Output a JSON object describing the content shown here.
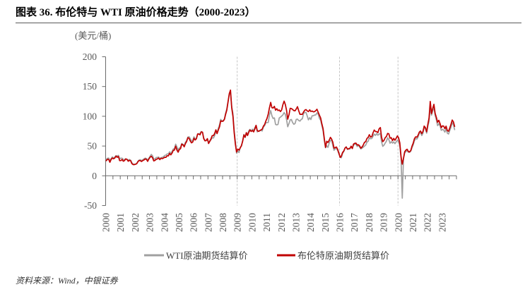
{
  "chart_data": {
    "type": "line",
    "title": "图表 36. 布伦特与 WTI 原油价格走势（2000-2023）",
    "ylabel": "(美元/桶)",
    "ylim": [
      -50,
      200
    ],
    "yticks": [
      -50,
      0,
      50,
      100,
      150,
      200
    ],
    "xlim": [
      2000,
      2024
    ],
    "xticks": [
      "2000",
      "2001",
      "2002",
      "2003",
      "2004",
      "2005",
      "2006",
      "2007",
      "2008",
      "2009",
      "2010",
      "2011",
      "2012",
      "2013",
      "2014",
      "2015",
      "2016",
      "2017",
      "2018",
      "2019",
      "2020",
      "2021",
      "2022",
      "2023"
    ],
    "reference_lines_x": [
      2009,
      2016,
      2020
    ],
    "grid": false,
    "legend": "bottom",
    "series": [
      {
        "name": "WTI原油期货结算价",
        "color": "#a0a0a0",
        "monthly_values": {
          "2000": [
            27.2,
            29.4,
            29.9,
            25.7,
            28.8,
            31.8,
            29.8,
            31.2,
            33.9,
            33.1,
            34.4,
            28.5
          ],
          "2001": [
            29.6,
            29.6,
            27.2,
            27.4,
            28.6,
            27.6,
            26.4,
            27.4,
            26.2,
            22.2,
            19.6,
            19.4
          ],
          "2002": [
            19.7,
            20.7,
            24.4,
            26.3,
            27.0,
            25.5,
            26.9,
            28.4,
            29.7,
            28.9,
            26.3,
            29.4
          ],
          "2003": [
            32.9,
            35.9,
            33.6,
            28.3,
            28.1,
            30.7,
            30.8,
            31.6,
            28.3,
            30.3,
            31.1,
            32.1
          ],
          "2004": [
            34.3,
            34.7,
            36.7,
            36.7,
            40.3,
            38.0,
            40.7,
            44.9,
            45.9,
            53.1,
            48.5,
            43.3
          ],
          "2005": [
            46.8,
            48.0,
            54.3,
            53.0,
            49.8,
            56.4,
            59.0,
            65.0,
            65.6,
            62.4,
            58.3,
            59.4
          ],
          "2006": [
            65.5,
            61.6,
            62.9,
            69.7,
            70.9,
            71.0,
            74.4,
            73.0,
            63.8,
            58.9,
            59.1,
            62.0
          ],
          "2007": [
            54.5,
            59.3,
            60.4,
            64.0,
            63.5,
            67.5,
            74.1,
            72.4,
            79.9,
            85.8,
            94.8,
            91.7
          ],
          "2008": [
            93.0,
            95.4,
            105.5,
            112.6,
            125.4,
            136.0,
            140.0,
            116.7,
            104.1,
            76.6,
            57.3,
            38.0
          ],
          "2009": [
            41.7,
            39.1,
            47.9,
            49.6,
            59.0,
            69.6,
            64.2,
            71.1,
            69.4,
            75.7,
            78.0,
            74.5
          ],
          "2010": [
            78.3,
            76.4,
            81.2,
            84.3,
            73.7,
            75.3,
            76.3,
            76.6,
            75.2,
            81.9,
            84.3,
            89.2
          ],
          "2011": [
            89.5,
            89.6,
            102.9,
            109.5,
            100.9,
            96.3,
            97.3,
            86.3,
            85.5,
            86.3,
            97.2,
            98.6
          ],
          "2012": [
            100.3,
            102.2,
            106.2,
            103.3,
            94.7,
            82.3,
            87.9,
            94.1,
            94.5,
            89.5,
            86.5,
            87.9
          ],
          "2013": [
            94.8,
            95.3,
            92.9,
            92.0,
            94.5,
            95.8,
            104.6,
            106.6,
            106.3,
            100.5,
            93.9,
            97.6
          ],
          "2014": [
            94.6,
            100.8,
            100.8,
            102.1,
            102.2,
            105.8,
            103.6,
            96.5,
            93.2,
            84.4,
            75.8,
            59.3
          ],
          "2015": [
            47.2,
            50.6,
            47.8,
            54.5,
            59.3,
            59.8,
            50.9,
            42.9,
            45.5,
            46.2,
            42.4,
            37.2
          ],
          "2016": [
            31.7,
            30.3,
            37.6,
            40.8,
            46.7,
            48.8,
            44.7,
            44.7,
            45.2,
            49.8,
            45.7,
            52.0
          ],
          "2017": [
            52.5,
            53.5,
            49.3,
            51.1,
            48.5,
            45.2,
            46.6,
            48.0,
            49.8,
            51.6,
            56.6,
            57.9
          ],
          "2018": [
            63.7,
            62.2,
            62.7,
            66.3,
            70.0,
            67.9,
            71.0,
            68.1,
            70.2,
            70.8,
            57.0,
            49.5
          ],
          "2019": [
            51.4,
            54.9,
            58.2,
            63.9,
            60.8,
            54.7,
            57.4,
            54.8,
            57.0,
            54.0,
            57.0,
            59.9
          ],
          "2020": [
            57.5,
            50.5,
            29.2,
            -37.6,
            28.6,
            38.3,
            40.7,
            42.3,
            39.6,
            39.4,
            41.4,
            47.0
          ],
          "2021": [
            52.0,
            59.0,
            62.3,
            61.7,
            65.2,
            71.4,
            72.5,
            67.7,
            71.6,
            81.5,
            79.2,
            71.7
          ],
          "2022": [
            83.2,
            91.6,
            115.0,
            101.8,
            109.6,
            114.8,
            101.6,
            93.7,
            84.3,
            87.6,
            84.4,
            76.4
          ],
          "2023": [
            78.1,
            76.8,
            73.3,
            79.4,
            71.6,
            70.3,
            76.1,
            81.3,
            89.4,
            85.5,
            77.6
          ]
        }
      },
      {
        "name": "布伦特原油期货结算价",
        "color": "#c00000",
        "monthly_values": {
          "2000": [
            25.5,
            27.8,
            27.5,
            22.8,
            27.6,
            29.8,
            28.5,
            29.8,
            33.0,
            31.0,
            32.5,
            25.5
          ],
          "2001": [
            25.6,
            27.5,
            24.5,
            25.6,
            28.3,
            27.7,
            24.5,
            25.8,
            25.6,
            20.5,
            18.8,
            18.7
          ],
          "2002": [
            19.4,
            20.3,
            23.7,
            25.7,
            25.4,
            24.1,
            25.7,
            26.6,
            28.3,
            27.5,
            24.3,
            28.3
          ],
          "2003": [
            31.2,
            32.8,
            30.3,
            25.0,
            25.8,
            27.6,
            28.4,
            29.8,
            27.1,
            29.6,
            28.8,
            29.8
          ],
          "2004": [
            31.2,
            30.9,
            33.8,
            33.4,
            37.6,
            35.2,
            38.2,
            42.7,
            43.2,
            49.8,
            43.1,
            39.7
          ],
          "2005": [
            44.3,
            45.5,
            53.1,
            51.9,
            48.7,
            54.3,
            57.5,
            64.1,
            62.9,
            58.5,
            55.3,
            56.8
          ],
          "2006": [
            63.0,
            60.2,
            62.1,
            70.3,
            70.0,
            68.9,
            73.7,
            73.2,
            62.5,
            58.9,
            59.1,
            62.4
          ],
          "2007": [
            54.3,
            57.8,
            62.1,
            67.4,
            67.5,
            71.3,
            77.2,
            70.8,
            77.1,
            82.3,
            92.5,
            91.4
          ],
          "2008": [
            91.9,
            94.8,
            103.3,
            110.4,
            124.6,
            138.0,
            144.0,
            114.6,
            99.6,
            72.8,
            53.2,
            40.0
          ],
          "2009": [
            44.9,
            43.1,
            46.8,
            50.8,
            57.9,
            68.6,
            64.9,
            72.5,
            67.7,
            73.2,
            77.0,
            74.7
          ],
          "2010": [
            76.2,
            73.8,
            78.8,
            84.8,
            75.9,
            74.8,
            75.6,
            77.1,
            78.2,
            83.5,
            86.1,
            92.0
          ],
          "2011": [
            96.5,
            103.7,
            114.6,
            123.3,
            114.5,
            113.9,
            116.7,
            110.2,
            112.8,
            109.6,
            110.5,
            107.9
          ],
          "2012": [
            110.7,
            119.3,
            125.5,
            119.8,
            110.3,
            95.2,
            102.6,
            113.4,
            113.0,
            111.5,
            109.5,
            109.2
          ],
          "2013": [
            112.3,
            116.1,
            109.5,
            103.3,
            103.3,
            103.3,
            107.4,
            110.3,
            111.2,
            109.1,
            107.8,
            110.8
          ],
          "2014": [
            108.1,
            108.9,
            107.5,
            107.8,
            109.5,
            111.8,
            106.8,
            101.6,
            97.1,
            87.4,
            79.4,
            62.3
          ],
          "2015": [
            47.8,
            58.1,
            55.9,
            59.5,
            64.6,
            61.7,
            56.5,
            46.5,
            47.6,
            48.4,
            44.3,
            38.0
          ],
          "2016": [
            30.8,
            33.2,
            39.1,
            41.6,
            46.7,
            48.3,
            44.7,
            45.7,
            46.1,
            49.7,
            45.9,
            53.3
          ],
          "2017": [
            54.6,
            54.9,
            51.6,
            52.3,
            50.3,
            46.4,
            48.5,
            51.7,
            56.2,
            57.5,
            62.7,
            64.4
          ],
          "2018": [
            69.1,
            65.2,
            66.0,
            72.1,
            76.9,
            74.4,
            74.3,
            72.5,
            78.9,
            81.0,
            64.8,
            57.4
          ],
          "2019": [
            59.4,
            64.0,
            66.1,
            71.2,
            70.5,
            63.3,
            64.0,
            59.0,
            62.8,
            59.7,
            63.2,
            67.0
          ],
          "2020": [
            63.7,
            55.5,
            32.0,
            19.5,
            29.4,
            40.3,
            43.2,
            44.7,
            40.9,
            40.2,
            42.7,
            49.9
          ],
          "2021": [
            54.8,
            62.3,
            65.4,
            64.8,
            68.3,
            73.4,
            75.2,
            70.8,
            74.5,
            83.5,
            81.0,
            74.2
          ],
          "2022": [
            86.5,
            97.1,
            125.0,
            104.6,
            113.3,
            120.0,
            105.0,
            98.0,
            89.8,
            93.3,
            88.0,
            80.9
          ],
          "2023": [
            83.9,
            83.5,
            79.2,
            83.4,
            75.7,
            74.9,
            80.1,
            86.2,
            93.7,
            90.6,
            82.9
          ]
        }
      }
    ]
  },
  "source": "资料来源：Wind，中银证券"
}
